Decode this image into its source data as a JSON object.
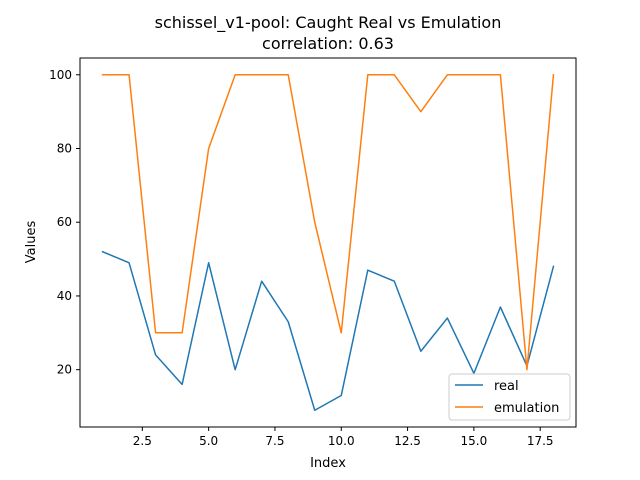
{
  "chart_data": {
    "type": "line",
    "title": "schissel_v1-pool: Caught Real vs Emulation",
    "subtitle": "correlation: 0.63",
    "xlabel": "Index",
    "ylabel": "Values",
    "xlim": [
      0.15,
      18.85
    ],
    "ylim": [
      4.45,
      104.55
    ],
    "x_ticks": [
      2.5,
      5.0,
      7.5,
      10.0,
      12.5,
      15.0,
      17.5
    ],
    "x_tick_labels": [
      "2.5",
      "5.0",
      "7.5",
      "10.0",
      "12.5",
      "15.0",
      "17.5"
    ],
    "y_ticks": [
      20,
      40,
      60,
      80,
      100
    ],
    "y_tick_labels": [
      "20",
      "40",
      "60",
      "80",
      "100"
    ],
    "grid": false,
    "legend_position": "lower-right",
    "x": [
      1,
      2,
      3,
      4,
      5,
      6,
      7,
      8,
      9,
      10,
      11,
      12,
      13,
      14,
      15,
      16,
      17,
      18
    ],
    "series": [
      {
        "name": "real",
        "color": "#1f77b4",
        "values": [
          52,
          49,
          24,
          16,
          49,
          20,
          44,
          33,
          9,
          13,
          47,
          44,
          25,
          34,
          19,
          37,
          21,
          48
        ]
      },
      {
        "name": "emulation",
        "color": "#ff7f0e",
        "values": [
          100,
          100,
          30,
          30,
          80,
          100,
          100,
          100,
          60,
          30,
          100,
          100,
          90,
          100,
          100,
          100,
          20,
          100
        ]
      }
    ]
  }
}
